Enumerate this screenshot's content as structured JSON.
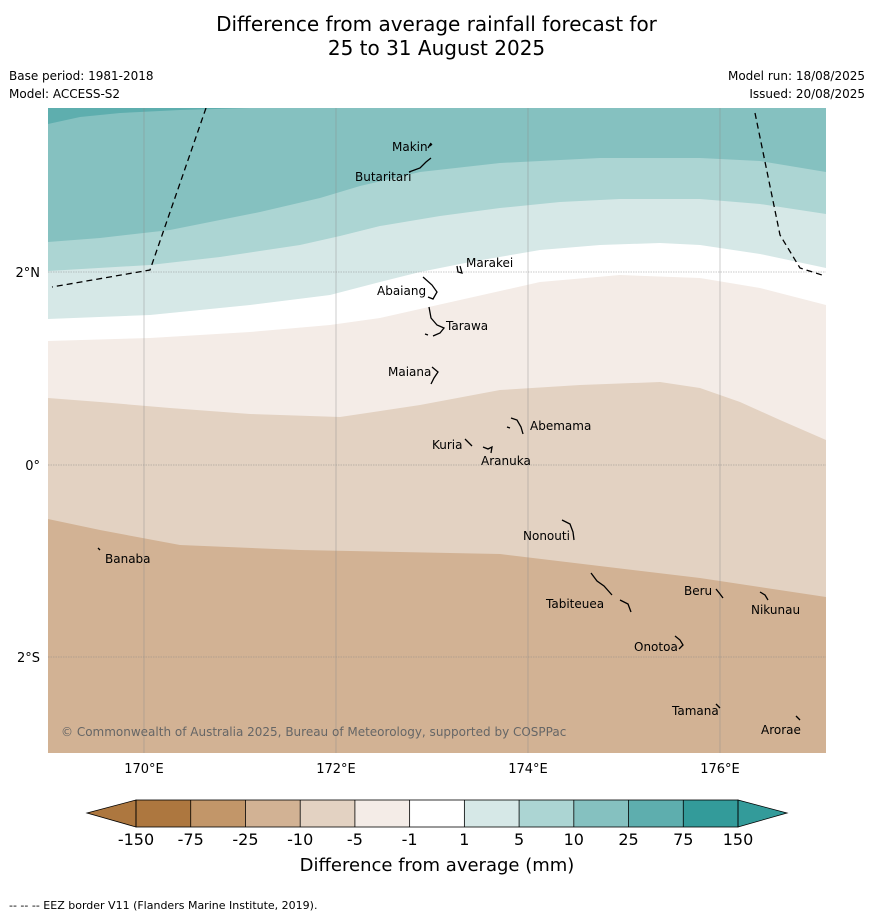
{
  "title": {
    "line1": "Difference from average rainfall forecast for",
    "line2": "25 to 31 August 2025"
  },
  "meta": {
    "base_period": "Base period: 1981-2018",
    "model": "Model: ACCESS-S2",
    "model_run": "Model run: 18/08/2025",
    "issued": "Issued: 20/08/2025"
  },
  "map": {
    "lat_labels": [
      "2°N",
      "0°",
      "2°S"
    ],
    "lon_labels": [
      "170°E",
      "172°E",
      "174°E",
      "176°E"
    ],
    "copyright": "© Commonwealth of Australia 2025, Bureau of Meteorology, supported by COSPPac",
    "places": [
      {
        "name": "Makin"
      },
      {
        "name": "Butaritari"
      },
      {
        "name": "Marakei"
      },
      {
        "name": "Abaiang"
      },
      {
        "name": "Tarawa"
      },
      {
        "name": "Maiana"
      },
      {
        "name": "Abemama"
      },
      {
        "name": "Kuria"
      },
      {
        "name": "Aranuka"
      },
      {
        "name": "Nonouti"
      },
      {
        "name": "Banaba"
      },
      {
        "name": "Beru"
      },
      {
        "name": "Tabiteuea"
      },
      {
        "name": "Nikunau"
      },
      {
        "name": "Onotoa"
      },
      {
        "name": "Tamana"
      },
      {
        "name": "Arorae"
      }
    ]
  },
  "legend": {
    "ticks": [
      "-150",
      "-75",
      "-25",
      "-10",
      "-5",
      "-1",
      "1",
      "5",
      "10",
      "25",
      "75",
      "150"
    ],
    "colors": [
      "#ad773f",
      "#c29669",
      "#d2b294",
      "#e3d2c2",
      "#f4ece7",
      "#ffffff",
      "#d6e8e7",
      "#acd5d3",
      "#85c1c0",
      "#5eaeae",
      "#339b9a"
    ],
    "extend_low_color": "#ad773f",
    "extend_high_color": "#339b9a",
    "label": "Difference from average (mm)"
  },
  "footer": "-- -- -- EEZ border V11 (Flanders Marine Institute, 2019)."
}
